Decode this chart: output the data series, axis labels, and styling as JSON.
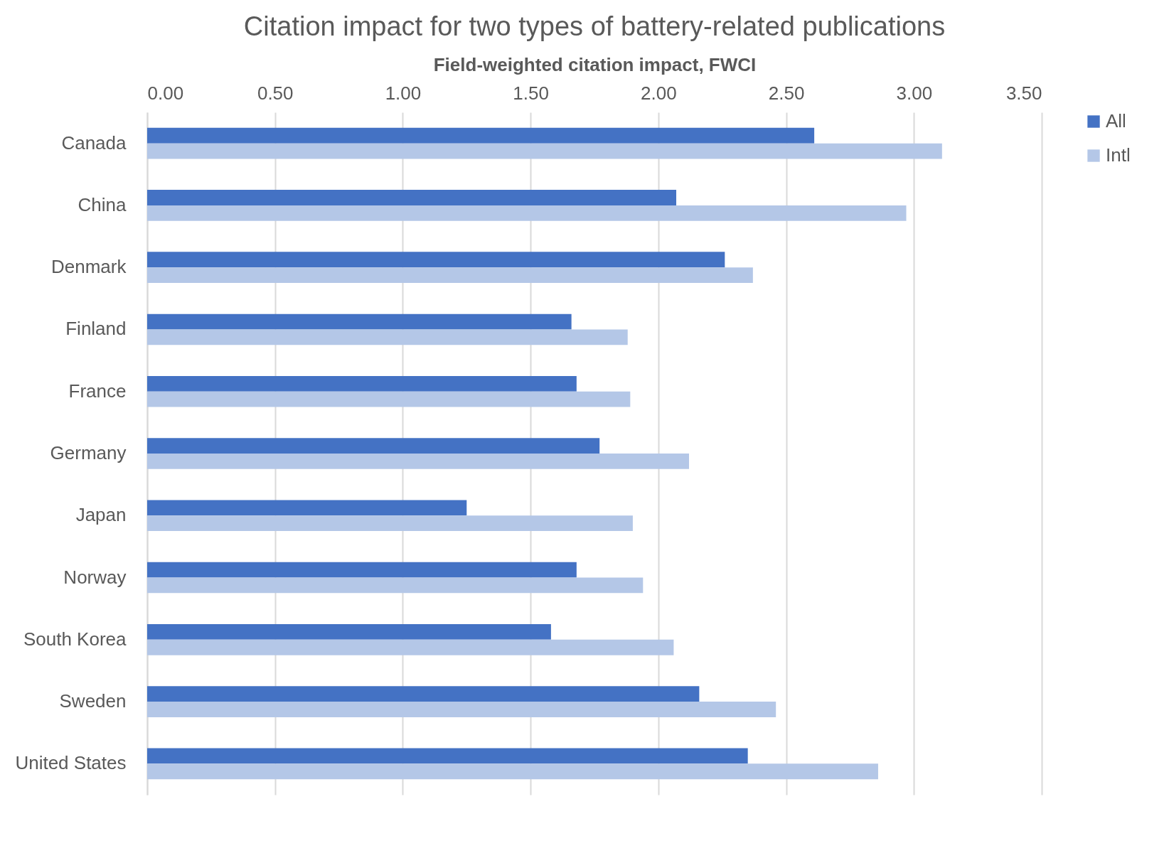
{
  "chart_data": {
    "type": "bar",
    "orientation": "horizontal",
    "title": "Citation impact for two types of battery-related publications",
    "xlabel": "Field-weighted citation impact, FWCI",
    "categories": [
      "Canada",
      "China",
      "Denmark",
      "Finland",
      "France",
      "Germany",
      "Japan",
      "Norway",
      "South Korea",
      "Sweden",
      "United States"
    ],
    "series": [
      {
        "name": "All",
        "color": "#4472c4",
        "values": [
          2.61,
          2.07,
          2.26,
          1.66,
          1.68,
          1.77,
          1.25,
          1.68,
          1.58,
          2.16,
          2.35
        ]
      },
      {
        "name": "Intl",
        "color": "#b4c7e7",
        "values": [
          3.11,
          2.97,
          2.37,
          1.88,
          1.89,
          2.12,
          1.9,
          1.94,
          2.06,
          2.46,
          2.86
        ]
      }
    ],
    "xlim": [
      0,
      3.5
    ],
    "xticks": [
      {
        "value": 0,
        "label": "0.00"
      },
      {
        "value": 0.5,
        "label": "0.50"
      },
      {
        "value": 1,
        "label": "1.00"
      },
      {
        "value": 1.5,
        "label": "1.50"
      },
      {
        "value": 2,
        "label": "2.00"
      },
      {
        "value": 2.5,
        "label": "2.50"
      },
      {
        "value": 3,
        "label": "3.00"
      },
      {
        "value": 3.5,
        "label": "3.50"
      }
    ],
    "grid": "x",
    "legend": "right"
  }
}
